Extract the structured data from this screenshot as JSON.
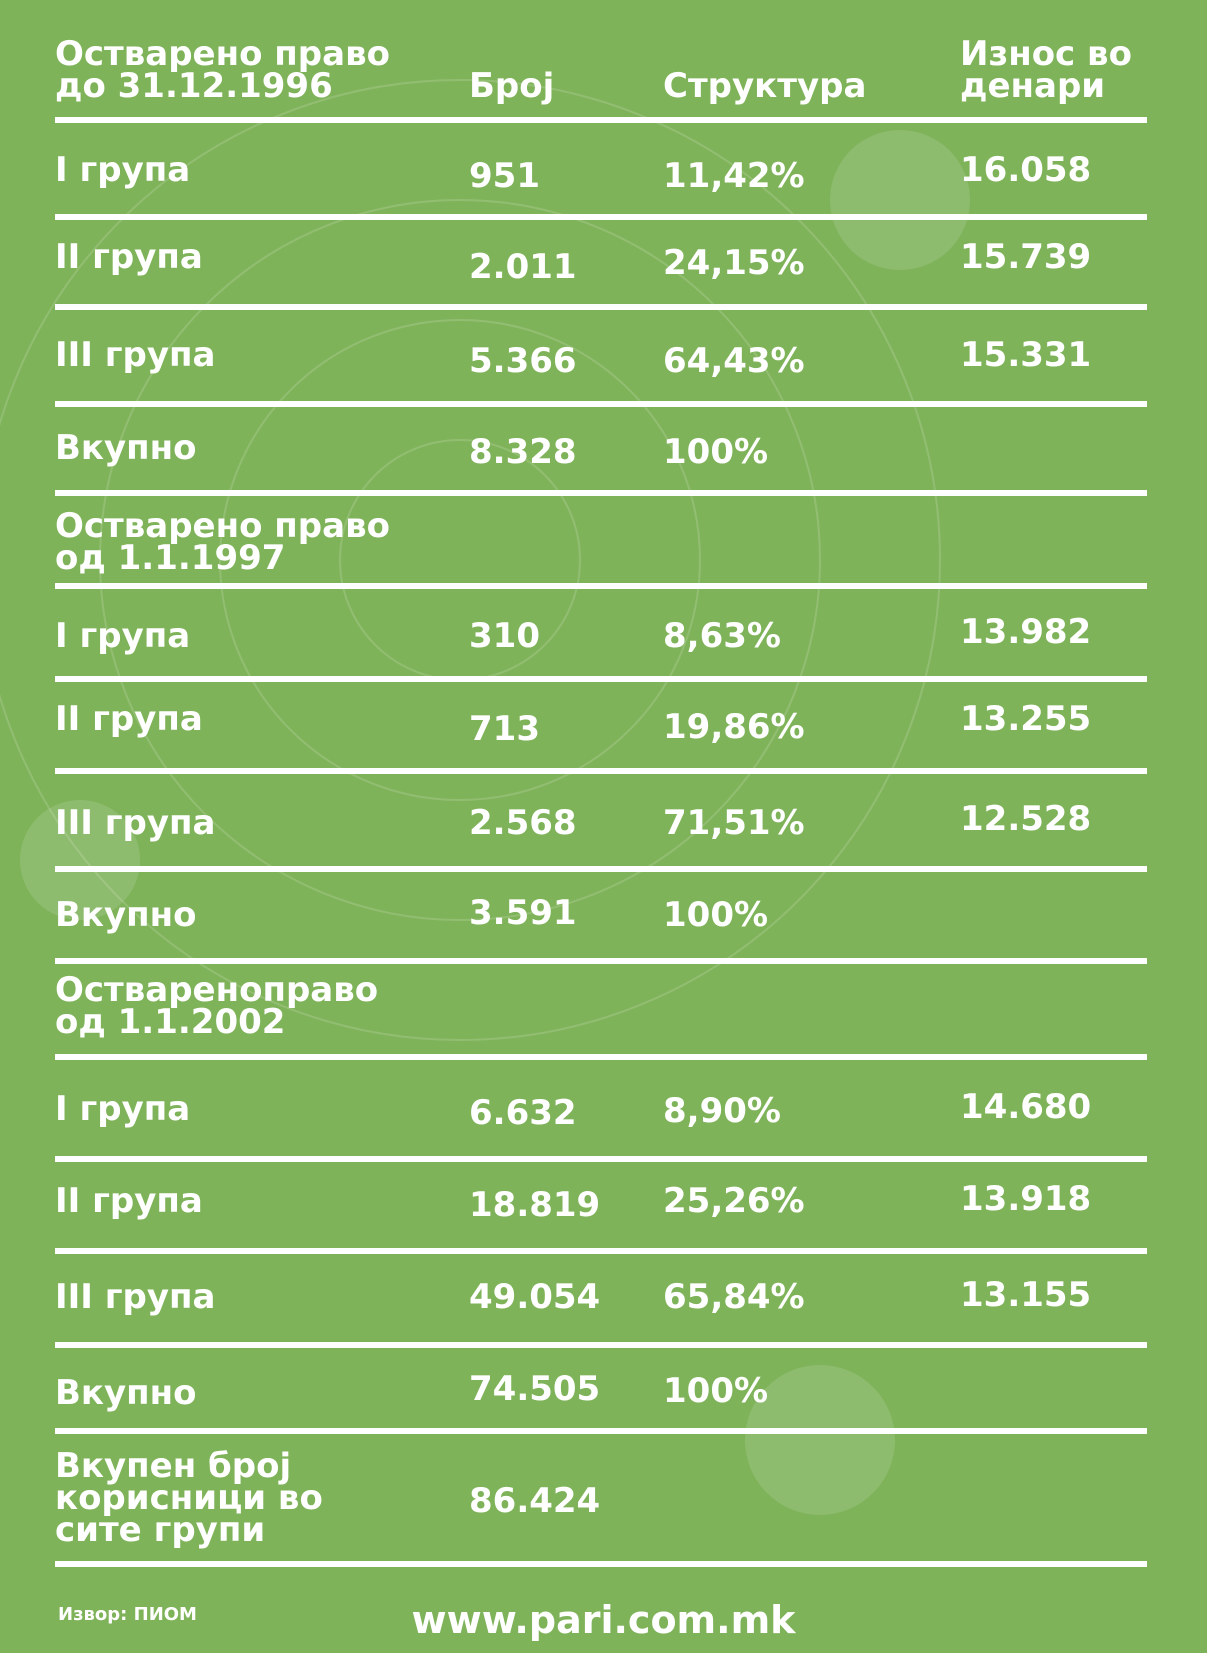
{
  "header": {
    "col_label": "Остварено право до 31.12.1996",
    "col_label_line1": "Остварено право",
    "col_label_line2": "до 31.12.1996",
    "col_count": "Број",
    "col_structure": "Структура",
    "col_amount_line1": "Износ во",
    "col_amount_line2": "денари"
  },
  "sections": [
    {
      "rows": [
        {
          "label": "I група",
          "count": "951",
          "structure": "11,42%",
          "amount": "16.058"
        },
        {
          "label": "II група",
          "count": "2.011",
          "structure": "24,15%",
          "amount": "15.739"
        },
        {
          "label": "III група",
          "count": "5.366",
          "structure": "64,43%",
          "amount": "15.331"
        },
        {
          "label": "Вкупно",
          "count": "8.328",
          "structure": "100%",
          "amount": ""
        }
      ]
    },
    {
      "title_line1": "Остварено право",
      "title_line2": "од 1.1.1997",
      "rows": [
        {
          "label": "I група",
          "count": "310",
          "structure": "8,63%",
          "amount": "13.982"
        },
        {
          "label": "II група",
          "count": "713",
          "structure": "19,86%",
          "amount": "13.255"
        },
        {
          "label": "III група",
          "count": "2.568",
          "structure": "71,51%",
          "amount": "12.528"
        },
        {
          "label": "Вкупно",
          "count": "3.591",
          "structure": "100%",
          "amount": ""
        }
      ]
    },
    {
      "title_line1": "Оствареноправо",
      "title_line2": "од 1.1.2002",
      "rows": [
        {
          "label": "I група",
          "count": "6.632",
          "structure": "8,90%",
          "amount": "14.680"
        },
        {
          "label": "II група",
          "count": "18.819",
          "structure": "25,26%",
          "amount": "13.918"
        },
        {
          "label": "III група",
          "count": "49.054",
          "structure": "65,84%",
          "amount": "13.155"
        },
        {
          "label": "Вкупно",
          "count": "74.505",
          "structure": "100%",
          "amount": ""
        }
      ]
    }
  ],
  "grand_total": {
    "label_line1": "Вкупен број",
    "label_line2": "корисници во",
    "label_line3": "сите групи",
    "count": "86.424"
  },
  "footer": {
    "source": "Извор: ПИОМ",
    "url": "www.pari.com.mk"
  },
  "colors": {
    "background": "#7fb35a",
    "text": "#ffffff"
  }
}
